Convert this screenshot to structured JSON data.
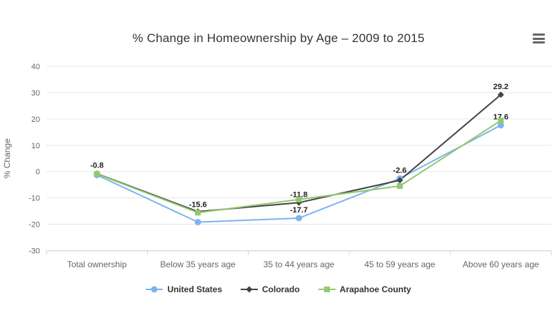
{
  "header": {
    "menu_icon": "hamburger-menu-icon"
  },
  "chart_data": {
    "type": "line",
    "title": "% Change in Homeownership by Age – 2009 to 2015",
    "xlabel": "",
    "ylabel": "% Change",
    "categories": [
      "Total ownership",
      "Below 35 years age",
      "35 to 44 years age",
      "45 to 59 years age",
      "Above 60 years age"
    ],
    "ylim": [
      -30,
      40
    ],
    "yticks": [
      40,
      30,
      20,
      10,
      0,
      -10,
      -20,
      -30
    ],
    "grid": "horizontal",
    "legend_position": "bottom",
    "series": [
      {
        "name": "United States",
        "color": "#7cb5ec",
        "marker": "circle",
        "values": [
          -1.3,
          -19.2,
          -17.7,
          -2.6,
          17.6
        ],
        "data_labels": [
          null,
          null,
          "-17.7",
          "-2.6",
          "17.6"
        ]
      },
      {
        "name": "Colorado",
        "color": "#434348",
        "marker": "diamond",
        "values": [
          -0.8,
          -15.2,
          -11.8,
          -3.3,
          29.2
        ],
        "data_labels": [
          "-0.8",
          null,
          "-11.8",
          null,
          "29.2"
        ]
      },
      {
        "name": "Arapahoe County",
        "color": "#90c96e",
        "marker": "square",
        "values": [
          -0.9,
          -15.6,
          -10.6,
          -5.5,
          19.4
        ],
        "data_labels": [
          null,
          "-15.6",
          null,
          null,
          null
        ]
      }
    ]
  }
}
